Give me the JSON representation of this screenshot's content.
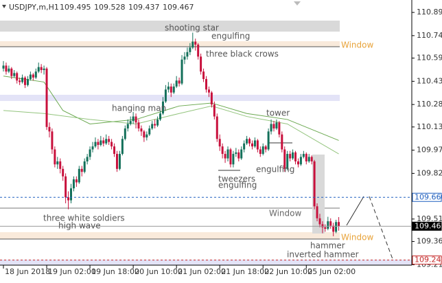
{
  "chart_data": {
    "type": "candlestick",
    "symbol": "USDJPY,m,H1",
    "ylim": [
      109.207,
      110.978
    ],
    "yticks": [
      110.895,
      {
        "value": 110.74,
        "label": "110.740"
      },
      {
        "value": 110.59,
        "label": "110.590"
      },
      110.435,
      {
        "value": 110.28,
        "label": "110.280"
      },
      {
        "value": 110.13,
        "label": "110.130"
      },
      109.975,
      {
        "value": 109.82,
        "label": "109.820"
      },
      109.515,
      109.365,
      {
        "value": 109.21,
        "label": "109.210"
      }
    ],
    "categories": [
      "18 Jun 2018",
      null,
      null,
      null,
      null,
      null,
      null,
      null,
      null,
      null,
      null,
      null,
      null,
      null,
      null,
      null,
      "19 Jun 02:00",
      null,
      null,
      null,
      null,
      null,
      null,
      null,
      null,
      null,
      null,
      null,
      null,
      null,
      null,
      null,
      "19 Jun 18:00",
      null,
      null,
      null,
      null,
      null,
      null,
      null,
      null,
      null,
      null,
      null,
      null,
      null,
      null,
      null,
      "20 Jun 10:00",
      null,
      null,
      null,
      null,
      null,
      null,
      null,
      null,
      null,
      null,
      null,
      null,
      null,
      null,
      null,
      "21 Jun 02:00",
      null,
      null,
      null,
      null,
      null,
      null,
      null,
      null,
      null,
      null,
      null,
      null,
      null,
      null,
      null,
      "21 Jun 18:00",
      null,
      null,
      null,
      null,
      null,
      null,
      null,
      null,
      null,
      null,
      null,
      null,
      null,
      null,
      null,
      "22 Jun 10:00",
      null,
      null,
      null,
      null,
      null,
      null,
      null,
      null,
      null,
      null,
      null,
      null,
      null,
      null,
      null,
      "25 Jun 02:00",
      null,
      null,
      null,
      null,
      null,
      null,
      null,
      null,
      null,
      null,
      null,
      null
    ],
    "series": [
      {
        "up_color": "#13705a",
        "down_color": "#c8103c",
        "ohlc": [
          [
            110.52,
            110.57,
            110.5,
            110.54
          ],
          [
            110.54,
            110.56,
            110.48,
            110.5
          ],
          [
            110.5,
            110.54,
            110.49,
            110.52
          ],
          [
            110.52,
            110.53,
            110.45,
            110.47
          ],
          [
            110.47,
            110.51,
            110.46,
            110.49
          ],
          [
            110.49,
            110.5,
            110.42,
            110.44
          ],
          [
            110.44,
            110.46,
            110.41,
            110.43
          ],
          [
            110.43,
            110.48,
            110.42,
            110.46
          ],
          [
            110.46,
            110.47,
            110.39,
            110.41
          ],
          [
            110.41,
            110.47,
            110.4,
            110.45
          ],
          [
            110.45,
            110.5,
            110.44,
            110.48
          ],
          [
            110.48,
            110.49,
            110.44,
            110.46
          ],
          [
            110.46,
            110.52,
            110.45,
            110.5
          ],
          [
            110.5,
            110.56,
            110.49,
            110.53
          ],
          [
            110.53,
            110.55,
            110.49,
            110.51
          ],
          [
            110.51,
            110.54,
            110.48,
            110.52
          ],
          [
            110.52,
            110.53,
            110.11,
            110.13
          ],
          [
            110.13,
            110.16,
            110.06,
            110.1
          ],
          [
            110.1,
            110.12,
            109.95,
            109.98
          ],
          [
            109.98,
            110.0,
            109.86,
            109.88
          ],
          [
            109.88,
            109.93,
            109.85,
            109.9
          ],
          [
            109.9,
            109.92,
            109.82,
            109.85
          ],
          [
            109.85,
            109.87,
            109.77,
            109.8
          ],
          [
            109.8,
            109.82,
            109.62,
            109.66
          ],
          [
            109.66,
            109.7,
            109.58,
            109.64
          ],
          [
            109.64,
            109.75,
            109.62,
            109.72
          ],
          [
            109.72,
            109.8,
            109.7,
            109.78
          ],
          [
            109.78,
            109.8,
            109.73,
            109.76
          ],
          [
            109.76,
            109.87,
            109.75,
            109.85
          ],
          [
            109.85,
            109.87,
            109.8,
            109.83
          ],
          [
            109.83,
            109.92,
            109.82,
            109.9
          ],
          [
            109.9,
            109.95,
            109.88,
            109.93
          ],
          [
            109.93,
            110.0,
            109.91,
            109.98
          ],
          [
            109.98,
            110.03,
            109.96,
            110.0
          ],
          [
            110.0,
            110.06,
            109.99,
            110.03
          ],
          [
            110.03,
            110.05,
            109.98,
            110.01
          ],
          [
            110.01,
            110.07,
            110.0,
            110.04
          ],
          [
            110.04,
            110.06,
            110.0,
            110.02
          ],
          [
            110.02,
            110.08,
            110.01,
            110.05
          ],
          [
            110.05,
            110.07,
            110.01,
            110.03
          ],
          [
            110.03,
            110.05,
            109.98,
            110.0
          ],
          [
            110.0,
            110.02,
            109.93,
            109.95
          ],
          [
            109.95,
            109.97,
            109.83,
            109.85
          ],
          [
            109.85,
            109.97,
            109.84,
            109.95
          ],
          [
            109.95,
            110.07,
            109.94,
            110.05
          ],
          [
            110.05,
            110.14,
            110.04,
            110.12
          ],
          [
            110.12,
            110.18,
            110.1,
            110.15
          ],
          [
            110.15,
            110.2,
            110.14,
            110.17
          ],
          [
            110.17,
            110.23,
            110.15,
            110.2
          ],
          [
            110.2,
            110.22,
            110.12,
            110.16
          ],
          [
            110.16,
            110.18,
            110.1,
            110.12
          ],
          [
            110.12,
            110.14,
            110.07,
            110.1
          ],
          [
            110.1,
            110.11,
            110.03,
            110.06
          ],
          [
            110.06,
            110.1,
            110.04,
            110.08
          ],
          [
            110.08,
            110.14,
            110.07,
            110.12
          ],
          [
            110.12,
            110.17,
            110.11,
            110.15
          ],
          [
            110.15,
            110.18,
            110.12,
            110.14
          ],
          [
            110.14,
            110.2,
            110.13,
            110.18
          ],
          [
            110.18,
            110.24,
            110.17,
            110.22
          ],
          [
            110.22,
            110.33,
            110.21,
            110.3
          ],
          [
            110.3,
            110.41,
            110.29,
            110.38
          ],
          [
            110.38,
            110.43,
            110.36,
            110.4
          ],
          [
            110.4,
            110.42,
            110.33,
            110.36
          ],
          [
            110.36,
            110.42,
            110.35,
            110.4
          ],
          [
            110.4,
            110.47,
            110.39,
            110.44
          ],
          [
            110.44,
            110.46,
            110.4,
            110.42
          ],
          [
            110.42,
            110.61,
            110.41,
            110.58
          ],
          [
            110.58,
            110.63,
            110.55,
            110.6
          ],
          [
            110.6,
            110.66,
            110.58,
            110.63
          ],
          [
            110.63,
            110.69,
            110.61,
            110.66
          ],
          [
            110.66,
            110.76,
            110.65,
            110.7
          ],
          [
            110.7,
            110.72,
            110.64,
            110.68
          ],
          [
            110.68,
            110.69,
            110.58,
            110.6
          ],
          [
            110.6,
            110.62,
            110.48,
            110.5
          ],
          [
            110.5,
            110.52,
            110.43,
            110.45
          ],
          [
            110.45,
            110.47,
            110.36,
            110.38
          ],
          [
            110.38,
            110.4,
            110.33,
            110.36
          ],
          [
            110.36,
            110.37,
            110.26,
            110.28
          ],
          [
            110.28,
            110.3,
            110.18,
            110.2
          ],
          [
            110.2,
            110.22,
            110.03,
            110.05
          ],
          [
            110.05,
            110.08,
            109.97,
            110.0
          ],
          [
            110.0,
            110.02,
            109.92,
            109.95
          ],
          [
            109.95,
            109.97,
            109.89,
            109.92
          ],
          [
            109.92,
            110.0,
            109.9,
            109.98
          ],
          [
            109.98,
            109.99,
            109.86,
            109.88
          ],
          [
            109.88,
            109.97,
            109.86,
            109.95
          ],
          [
            109.95,
            109.99,
            109.93,
            109.96
          ],
          [
            109.96,
            109.98,
            109.9,
            109.92
          ],
          [
            109.92,
            110.0,
            109.91,
            109.98
          ],
          [
            109.98,
            110.04,
            109.96,
            110.02
          ],
          [
            110.02,
            110.07,
            110.01,
            110.05
          ],
          [
            110.05,
            110.06,
            110.0,
            110.02
          ],
          [
            110.02,
            110.04,
            109.98,
            110.0
          ],
          [
            110.0,
            110.06,
            109.99,
            110.04
          ],
          [
            110.04,
            110.05,
            109.96,
            109.98
          ],
          [
            109.98,
            110.0,
            109.93,
            109.95
          ],
          [
            109.95,
            110.02,
            109.94,
            110.0
          ],
          [
            110.0,
            110.01,
            109.96,
            109.98
          ],
          [
            109.98,
            110.12,
            109.97,
            110.1
          ],
          [
            110.1,
            110.18,
            110.08,
            110.15
          ],
          [
            110.15,
            110.17,
            110.1,
            110.12
          ],
          [
            110.12,
            110.18,
            110.11,
            110.16
          ],
          [
            110.16,
            110.17,
            110.06,
            110.08
          ],
          [
            110.08,
            110.1,
            109.96,
            109.98
          ],
          [
            109.98,
            110.0,
            109.83,
            109.85
          ],
          [
            109.85,
            109.97,
            109.84,
            109.95
          ],
          [
            109.95,
            109.97,
            109.9,
            109.92
          ],
          [
            109.92,
            109.98,
            109.91,
            109.96
          ],
          [
            109.96,
            109.97,
            109.88,
            109.9
          ],
          [
            109.9,
            109.92,
            109.86,
            109.88
          ],
          [
            109.88,
            109.95,
            109.87,
            109.93
          ],
          [
            109.93,
            109.97,
            109.92,
            109.95
          ],
          [
            109.95,
            109.96,
            109.88,
            109.9
          ],
          [
            109.9,
            109.95,
            109.89,
            109.93
          ],
          [
            109.93,
            109.94,
            109.88,
            109.9
          ],
          [
            109.9,
            109.91,
            109.58,
            109.6
          ],
          [
            109.6,
            109.62,
            109.5,
            109.52
          ],
          [
            109.52,
            109.55,
            109.46,
            109.48
          ],
          [
            109.48,
            109.5,
            109.42,
            109.46
          ],
          [
            109.46,
            109.48,
            109.43,
            109.45
          ],
          [
            109.45,
            109.53,
            109.44,
            109.5
          ],
          [
            109.5,
            109.52,
            109.45,
            109.47
          ],
          [
            109.47,
            109.49,
            109.4,
            109.43
          ],
          [
            109.43,
            109.51,
            109.42,
            109.495
          ],
          [
            109.495,
            109.528,
            109.437,
            109.467
          ]
        ]
      }
    ],
    "lines": [
      {
        "color": "#6aa84f",
        "x": [
          0,
          15,
          22,
          32,
          49,
          65,
          77,
          90,
          105,
          124
        ],
        "values": [
          110.47,
          110.43,
          110.24,
          110.15,
          110.18,
          110.27,
          110.29,
          110.22,
          110.18,
          110.04
        ]
      },
      {
        "color": "#93c47d",
        "x": [
          0,
          15,
          32,
          49,
          65,
          77,
          90,
          105,
          124
        ],
        "values": [
          110.24,
          110.22,
          110.18,
          110.15,
          110.22,
          110.27,
          110.2,
          110.15,
          109.95
        ]
      }
    ],
    "levels": [
      {
        "value": 109.66,
        "label": "109.660",
        "color": "#1f5fbf"
      },
      {
        "value": 109.467,
        "color": "#000000"
      },
      {
        "value": 109.241,
        "label": "109.241",
        "color": "#c62828"
      }
    ],
    "annotations": [
      "shooting star",
      "engulfing",
      "three black crows",
      "hanging man",
      "tower",
      "engulfing",
      "tweezers",
      "engulfing",
      "three white soldiers",
      "high wave",
      "Window",
      "Window",
      "Window",
      "hammer",
      "inverted hammer"
    ]
  }
}
